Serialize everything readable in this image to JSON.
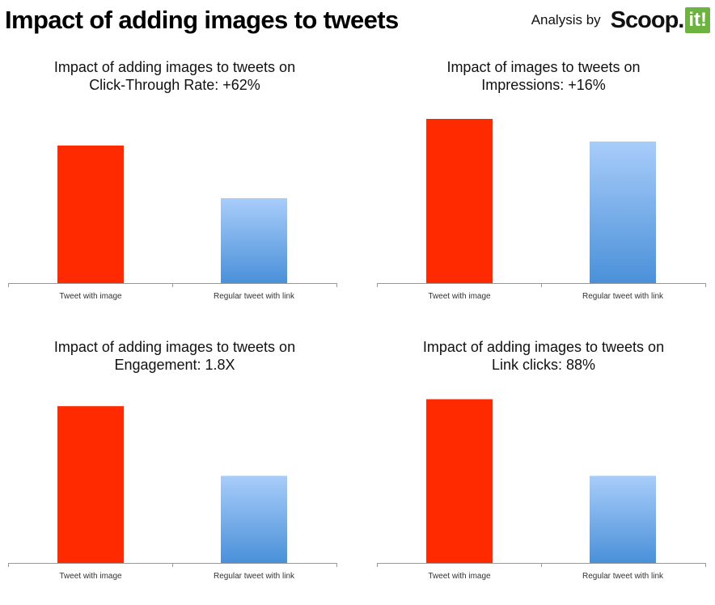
{
  "header": {
    "title": "Impact of adding images to tweets",
    "analysis_label": "Analysis by",
    "logo_text": "Scoop.",
    "logo_badge": "it!"
  },
  "colors": {
    "image_bar": "#ff2a00",
    "link_bar_top": "#a8cdfa",
    "link_bar_bottom": "#4a90d9",
    "axis": "#999999"
  },
  "chart_data": [
    {
      "type": "bar",
      "title_line1": "Impact of adding images to tweets on",
      "title_line2": "Click-Through Rate: +62%",
      "categories": [
        "Tweet with image",
        "Regular tweet with link"
      ],
      "values": [
        162,
        100
      ],
      "ylim": [
        0,
        200
      ]
    },
    {
      "type": "bar",
      "title_line1": "Impact of images to tweets on",
      "title_line2": "Impressions: +16%",
      "categories": [
        "Tweet with image",
        "Regular tweet with link"
      ],
      "values": [
        116,
        100
      ],
      "ylim": [
        0,
        120
      ]
    },
    {
      "type": "bar",
      "title_line1": "Impact of adding images to tweets on",
      "title_line2": "Engagement: 1.8X",
      "categories": [
        "Tweet with image",
        "Regular tweet with link"
      ],
      "values": [
        180,
        100
      ],
      "ylim": [
        0,
        195
      ]
    },
    {
      "type": "bar",
      "title_line1": "Impact of adding images to tweets on",
      "title_line2": "Link clicks: 88%",
      "categories": [
        "Tweet with image",
        "Regular tweet with link"
      ],
      "values": [
        188,
        100
      ],
      "ylim": [
        0,
        195
      ]
    }
  ]
}
